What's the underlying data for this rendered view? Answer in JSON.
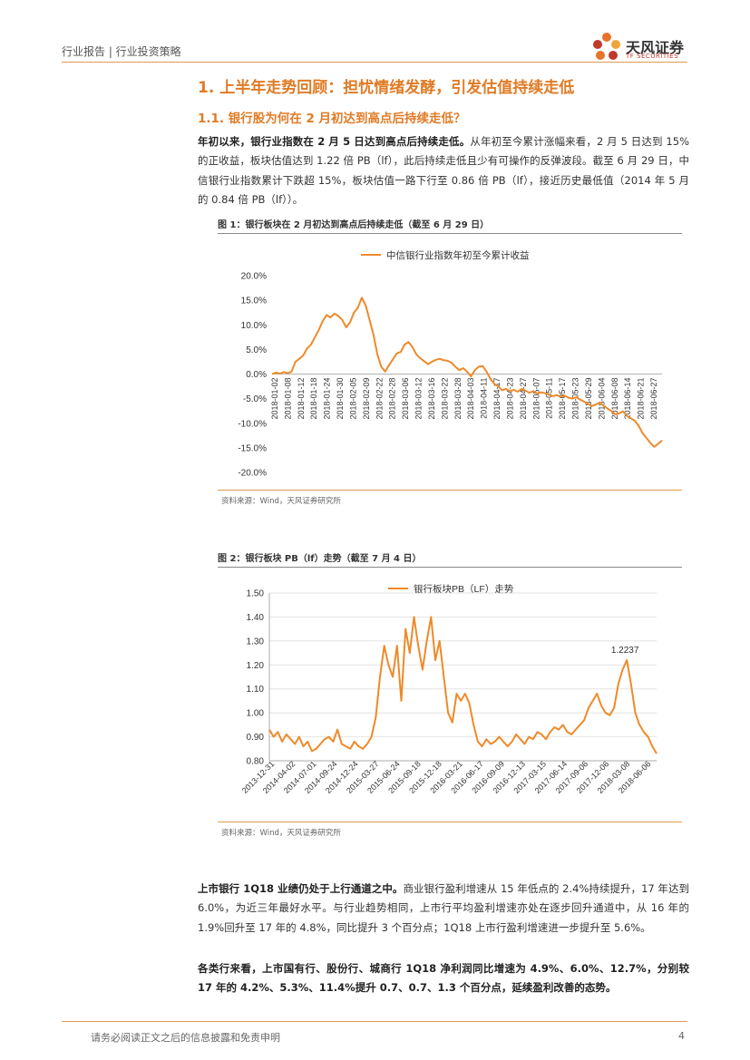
{
  "header": {
    "breadcrumb": "行业报告 | 行业投资策略",
    "brand": "天风证券",
    "brand_en": "TF SECURITIES"
  },
  "section": {
    "h1": "1. 上半年走势回顾：担忧情绪发酵，引发估值持续走低",
    "h2": "1.1. 银行股为何在 2 月初达到高点后持续走低？"
  },
  "para1": {
    "bold": "年初以来，银行业指数在 2 月 5 日达到高点后持续走低。",
    "rest": "从年初至今累计涨幅来看，2 月 5 日达到 15%的正收益，板块估值达到 1.22 倍 PB（lf），此后持续走低且少有可操作的反弹波段。截至 6 月 29 日，中信银行业指数累计下跌超 15%，板块估值一路下行至 0.86 倍 PB（lf），接近历史最低值（2014 年 5 月的 0.84 倍 PB（lf））。"
  },
  "fig1": {
    "title": "图 1：银行板块在 2 月初达到高点后持续走低（截至 6 月 29 日）",
    "source": "资料来源：Wind，天风证券研究所"
  },
  "fig2": {
    "title": "图 2：银行板块 PB（lf）走势（截至 7 月 4 日）",
    "source": "资料来源：Wind，天风证券研究所"
  },
  "para2": {
    "bold": "上市银行 1Q18 业绩仍处于上行通道之中。",
    "rest": "商业银行盈利增速从 15 年低点的 2.4%持续提升，17 年达到 6.0%，为近三年最好水平。与行业趋势相同，上市行平均盈利增速亦处在逐步回升通道中，从 16 年的 1.9%回升至 17 年的 4.8%，同比提升 3 个百分点；1Q18 上市行盈利增速进一步提升至 5.6%。"
  },
  "para3": {
    "bold": "各类行来看，上市国有行、股份行、城商行 1Q18 净利润同比增速为 4.9%、6.0%、12.7%，分别较 17 年的 4.2%、5.3%、11.4%提升 0.7、0.7、1.3 个百分点，延续盈利改善的态势。"
  },
  "footer": {
    "disclaimer": "请务必阅读正文之后的信息披露和免责申明",
    "page": "4"
  },
  "colors": {
    "accent": "#e07b25",
    "line": "#ee8a2a"
  },
  "chart_data": [
    {
      "type": "line",
      "title": "",
      "legend": [
        "中信银行业指数年初至今累计收益"
      ],
      "ylim": [
        -20,
        20
      ],
      "yticks": [
        "20.0%",
        "15.0%",
        "10.0%",
        "5.0%",
        "0.0%",
        "-5.0%",
        "-10.0%",
        "-15.0%",
        "-20.0%"
      ],
      "xticks": [
        "2018-01-02",
        "2018-01-08",
        "2018-01-12",
        "2018-01-18",
        "2018-01-24",
        "2018-01-30",
        "2018-02-05",
        "2018-02-09",
        "2018-02-22",
        "2018-02-28",
        "2018-03-06",
        "2018-03-12",
        "2018-03-16",
        "2018-03-22",
        "2018-03-28",
        "2018-04-03",
        "2018-04-11",
        "2018-04-17",
        "2018-04-23",
        "2018-04-27",
        "2018-05-07",
        "2018-05-11",
        "2018-05-17",
        "2018-05-23",
        "2018-05-29",
        "2018-06-04",
        "2018-06-08",
        "2018-06-14",
        "2018-06-21",
        "2018-06-27"
      ],
      "series": [
        {
          "name": "中信银行业指数年初至今累计收益",
          "values": [
            0,
            0.3,
            0.1,
            0.4,
            0.2,
            0.5,
            2.5,
            3.1,
            3.8,
            5.2,
            6.0,
            7.5,
            9.0,
            10.8,
            12.0,
            11.5,
            12.3,
            11.8,
            11.0,
            9.5,
            10.5,
            12.5,
            13.5,
            15.5,
            14.0,
            11.0,
            8.0,
            4.0,
            1.5,
            0.5,
            1.8,
            3.0,
            4.2,
            4.5,
            6.0,
            6.5,
            5.5,
            4.0,
            3.2,
            2.6,
            2.0,
            2.5,
            2.9,
            3.1,
            2.8,
            2.7,
            2.3,
            1.5,
            0.8,
            1.2,
            0.5,
            -0.5,
            0.8,
            1.5,
            1.6,
            0.5,
            -1.0,
            -2.0,
            -2.5,
            -3.3,
            -3.0,
            -3.5,
            -3.2,
            -3.6,
            -3.0,
            -3.4,
            -3.8,
            -3.5,
            -4.0,
            -3.7,
            -3.9,
            -4.2,
            -4.5,
            -4.3,
            -4.6,
            -4.4,
            -4.8,
            -5.0,
            -4.7,
            -5.2,
            -5.6,
            -6.0,
            -6.5,
            -6.2,
            -5.8,
            -6.4,
            -7.0,
            -7.5,
            -8.2,
            -8.0,
            -7.6,
            -8.5,
            -9.0,
            -9.5,
            -10.5,
            -12.0,
            -13.0,
            -14.0,
            -14.8,
            -14.2,
            -13.5
          ]
        }
      ]
    },
    {
      "type": "line",
      "legend": [
        "银行板块PB（LF）走势"
      ],
      "ylim": [
        0.8,
        1.5
      ],
      "yticks": [
        "1.50",
        "1.40",
        "1.30",
        "1.20",
        "1.10",
        "1.00",
        "0.90",
        "0.80"
      ],
      "xticks": [
        "2013-12-31",
        "2014-04-02",
        "2014-07-01",
        "2014-09-24",
        "2014-12-24",
        "2015-03-27",
        "2015-06-24",
        "2015-09-18",
        "2015-12-18",
        "2016-03-21",
        "2016-06-17",
        "2016-09-09",
        "2016-12-13",
        "2017-03-15",
        "2017-06-14",
        "2017-09-06",
        "2017-12-06",
        "2018-03-08",
        "2018-06-06"
      ],
      "annotation": "1.2237",
      "series": [
        {
          "name": "银行板块PB（LF）走势",
          "values": [
            0.93,
            0.9,
            0.92,
            0.88,
            0.91,
            0.89,
            0.87,
            0.9,
            0.86,
            0.88,
            0.84,
            0.85,
            0.87,
            0.89,
            0.9,
            0.88,
            0.93,
            0.87,
            0.86,
            0.85,
            0.88,
            0.86,
            0.85,
            0.87,
            0.9,
            0.98,
            1.15,
            1.28,
            1.2,
            1.15,
            1.28,
            1.05,
            1.35,
            1.25,
            1.4,
            1.28,
            1.18,
            1.3,
            1.4,
            1.22,
            1.3,
            1.15,
            1.0,
            0.96,
            1.08,
            1.05,
            1.08,
            1.04,
            0.95,
            0.88,
            0.86,
            0.89,
            0.87,
            0.88,
            0.9,
            0.88,
            0.86,
            0.88,
            0.91,
            0.89,
            0.87,
            0.9,
            0.89,
            0.92,
            0.91,
            0.89,
            0.92,
            0.94,
            0.93,
            0.95,
            0.92,
            0.91,
            0.93,
            0.95,
            0.97,
            1.02,
            1.05,
            1.08,
            1.03,
            1.0,
            0.99,
            1.02,
            1.12,
            1.18,
            1.22,
            1.12,
            1.0,
            0.95,
            0.92,
            0.9,
            0.86,
            0.83
          ]
        }
      ]
    }
  ]
}
